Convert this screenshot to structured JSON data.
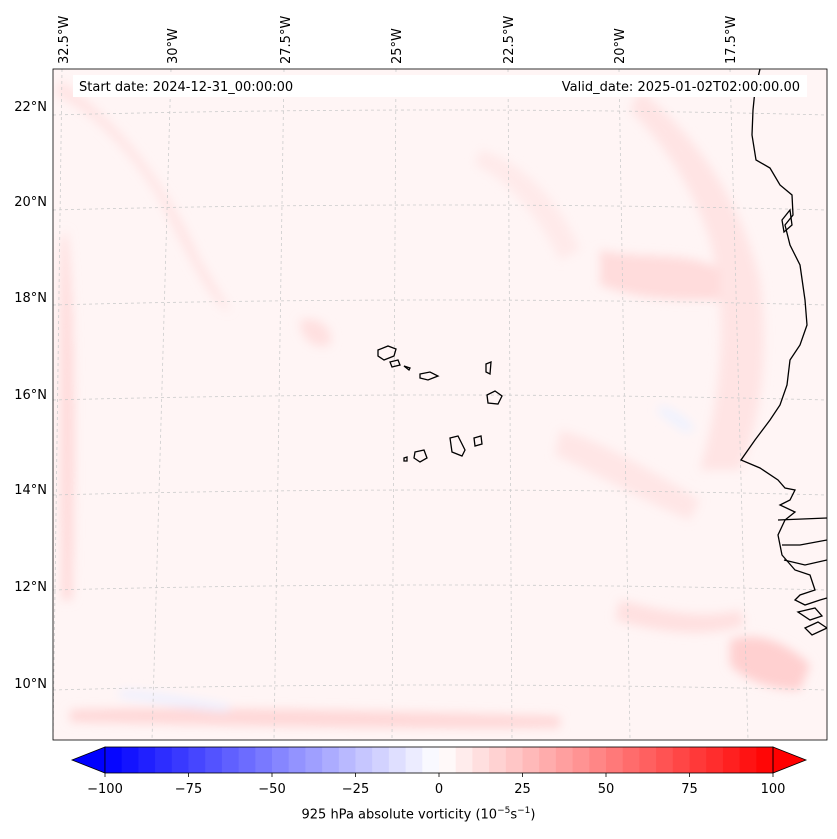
{
  "header": {
    "start_date": "Start date: 2024-12-31_00:00:00",
    "valid_date": "Valid_date: 2025-01-02T02:00:00.00"
  },
  "map": {
    "lon_labels": [
      "32.5°W",
      "30°W",
      "27.5°W",
      "25°W",
      "22.5°W",
      "20°W",
      "17.5°W"
    ],
    "lat_labels": [
      "22°N",
      "20°N",
      "18°N",
      "16°N",
      "14°N",
      "12°N",
      "10°N"
    ],
    "gridlines": true,
    "coastline_color": "#000000",
    "field": "925 hPa absolute vorticity",
    "background_color": "#fff5f5"
  },
  "colorbar": {
    "ticks": [
      "−100",
      "−75",
      "−50",
      "−25",
      "0",
      "25",
      "50",
      "75",
      "100"
    ],
    "range": [
      -100,
      100
    ],
    "step": 5,
    "colormap": "bwr",
    "extend": "both",
    "label_prefix": "925 hPa absolute vorticity (10",
    "label_exp1": "−5",
    "label_mid": "s",
    "label_exp2": "−1",
    "label_suffix": ")"
  }
}
